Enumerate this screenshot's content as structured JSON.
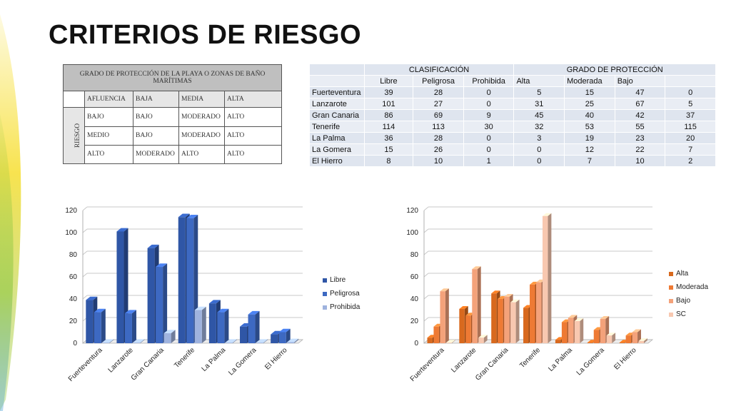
{
  "title": "CRITERIOS DE RIESGO",
  "risk_table": {
    "header": "GRADO DE PROTECCIÓN DE LA PLAYA O ZONAS DE BAÑO MARÍTIMAS",
    "row_header": "RIESGO",
    "columns": [
      "AFLUENCIA",
      "BAJA",
      "MEDIA",
      "ALTA"
    ],
    "rows": [
      [
        "BAJO",
        "BAJO",
        "MODERADO",
        "ALTO"
      ],
      [
        "MEDIO",
        "BAJO",
        "MODERADO",
        "ALTO"
      ],
      [
        "ALTO",
        "MODERADO",
        "ALTO",
        "ALTO"
      ]
    ]
  },
  "class_table": {
    "group1": "CLASIFICACIÓN",
    "group2": "GRADO DE PROTECCIÓN",
    "subheaders": [
      "Libre",
      "Peligrosa",
      "Prohibida",
      "Alta",
      "Moderada",
      "Bajo",
      ""
    ],
    "rows": [
      {
        "name": "Fuerteventura",
        "values": [
          "39",
          "28",
          "0",
          "5",
          "15",
          "47",
          "0"
        ]
      },
      {
        "name": "Lanzarote",
        "values": [
          "101",
          "27",
          "0",
          "31",
          "25",
          "67",
          "5"
        ]
      },
      {
        "name": "Gran Canaria",
        "values": [
          "86",
          "69",
          "9",
          "45",
          "40",
          "42",
          "37"
        ]
      },
      {
        "name": "Tenerife",
        "values": [
          "114",
          "113",
          "30",
          "32",
          "53",
          "55",
          "115"
        ]
      },
      {
        "name": "La Palma",
        "values": [
          "36",
          "28",
          "0",
          "3",
          "19",
          "23",
          "20"
        ]
      },
      {
        "name": "La Gomera",
        "values": [
          "15",
          "26",
          "0",
          "0",
          "12",
          "22",
          "7"
        ]
      },
      {
        "name": "El Hierro",
        "values": [
          "8",
          "10",
          "1",
          "0",
          "7",
          "10",
          "2"
        ]
      }
    ]
  },
  "colors": {
    "blue_series": [
      "#2f56a6",
      "#3d69c2",
      "#9fb3de"
    ],
    "orange_series": [
      "#d8691e",
      "#ee7a34",
      "#f4a27a",
      "#f8c8b0"
    ],
    "accent_green": "#8cc63f",
    "accent_yellow": "#f7e03c"
  },
  "chart_data": [
    {
      "type": "bar",
      "categories": [
        "Fuerteventura",
        "Lanzarote",
        "Gran Canaria",
        "Tenerife",
        "La Palma",
        "La Gomera",
        "El Hierro"
      ],
      "series": [
        {
          "name": "Libre",
          "values": [
            39,
            101,
            86,
            114,
            36,
            15,
            8
          ]
        },
        {
          "name": "Peligrosa",
          "values": [
            28,
            27,
            69,
            113,
            28,
            26,
            10
          ]
        },
        {
          "name": "Prohibida",
          "values": [
            0,
            0,
            9,
            30,
            0,
            0,
            1
          ]
        }
      ],
      "yticks": [
        0,
        20,
        40,
        60,
        80,
        100,
        120
      ],
      "ylim": [
        0,
        120
      ],
      "legend": "right",
      "grid": true
    },
    {
      "type": "bar",
      "categories": [
        "Fuerteventura",
        "Lanzarote",
        "Gran Canaria",
        "Tenerife",
        "La Palma",
        "La Gomera",
        "El Hierro"
      ],
      "series": [
        {
          "name": "Alta",
          "values": [
            5,
            31,
            45,
            32,
            3,
            0,
            0
          ]
        },
        {
          "name": "Moderada",
          "values": [
            15,
            25,
            40,
            53,
            19,
            12,
            7
          ]
        },
        {
          "name": "Bajo",
          "values": [
            47,
            67,
            42,
            55,
            23,
            22,
            10
          ]
        },
        {
          "name": "SC",
          "values": [
            0,
            5,
            37,
            115,
            20,
            7,
            2
          ]
        }
      ],
      "yticks": [
        0,
        20,
        40,
        60,
        80,
        100,
        120
      ],
      "ylim": [
        0,
        120
      ],
      "legend": "right",
      "grid": true
    }
  ]
}
